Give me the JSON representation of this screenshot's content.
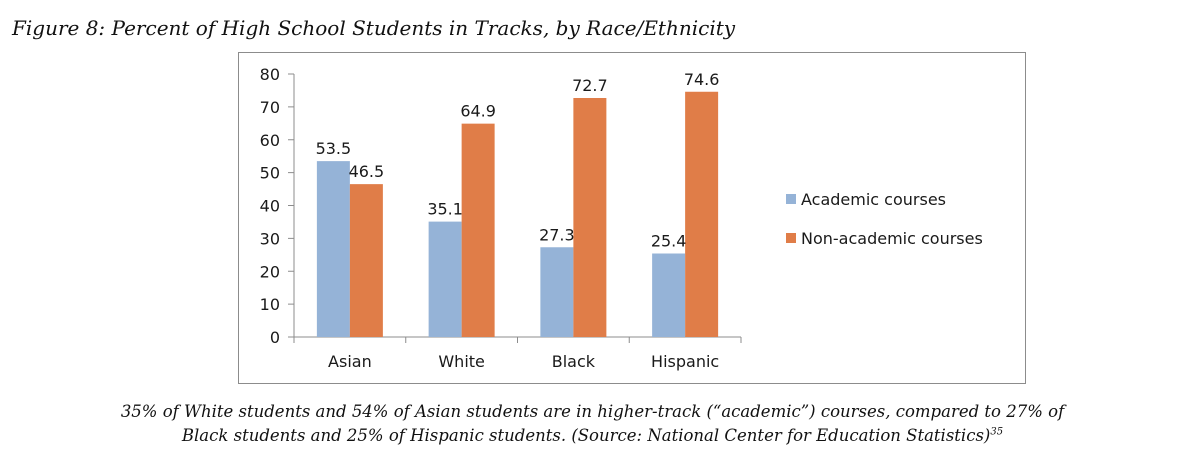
{
  "figure_title": "Figure 8: Percent of High School Students in Tracks, by Race/Ethnicity",
  "caption": {
    "line1": "35% of White students and 54% of Asian students are in higher-track (“academic”) courses, compared to 27% of",
    "line2": "Black students and 25% of Hispanic students. (Source: National Center for Education Statistics)",
    "footnote": "35"
  },
  "colors": {
    "academic": "#95b3d7",
    "non_academic": "#e07d48",
    "axis": "#8c8c8c",
    "text": "#1a1a1a"
  },
  "chart_data": {
    "type": "bar",
    "title": "",
    "xlabel": "",
    "ylabel": "",
    "categories": [
      "Asian",
      "White",
      "Black",
      "Hispanic"
    ],
    "series": [
      {
        "name": "Academic courses",
        "values": [
          53.5,
          35.1,
          27.3,
          25.4
        ]
      },
      {
        "name": "Non-academic courses",
        "values": [
          46.5,
          64.9,
          72.7,
          74.6
        ]
      }
    ],
    "ylim": [
      0,
      80
    ],
    "yticks": [
      0,
      10,
      20,
      30,
      40,
      50,
      60,
      70,
      80
    ],
    "grid": false,
    "legend_position": "right",
    "data_labels": true
  }
}
